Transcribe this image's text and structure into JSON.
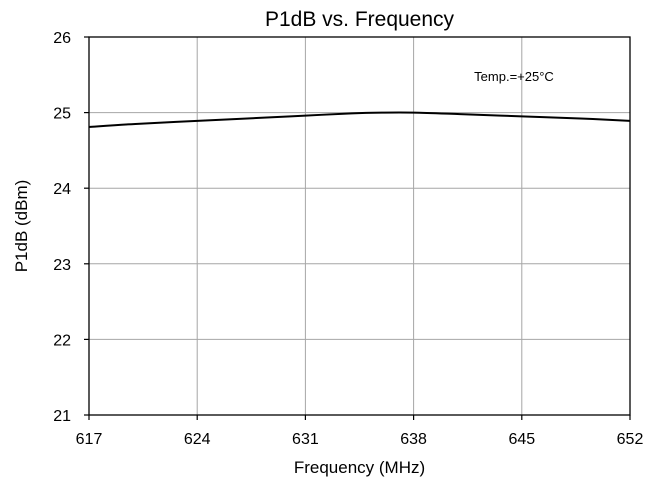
{
  "chart_data": {
    "type": "line",
    "title": "P1dB vs. Frequency",
    "xlabel": "Frequency (MHz)",
    "ylabel": "P1dB (dBm)",
    "xlim": [
      617,
      652
    ],
    "ylim": [
      21,
      26
    ],
    "x_ticks": [
      "617",
      "624",
      "631",
      "638",
      "645",
      "652"
    ],
    "y_ticks": [
      "21",
      "22",
      "23",
      "24",
      "25",
      "26"
    ],
    "grid": true,
    "annotation": "Temp.=+25°C",
    "series": [
      {
        "color": "#000000",
        "x": [
          617,
          620,
          624,
          628,
          631,
          634,
          636,
          638,
          641,
          645,
          649,
          652
        ],
        "y": [
          24.81,
          24.85,
          24.89,
          24.93,
          24.96,
          24.99,
          25.0,
          25.0,
          24.98,
          24.95,
          24.92,
          24.89
        ]
      }
    ]
  }
}
